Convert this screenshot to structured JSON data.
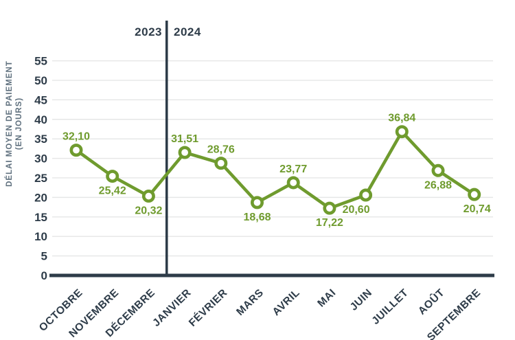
{
  "chart_data": {
    "type": "line",
    "title": "",
    "xlabel": "",
    "ylabel": "DÉLAI MOYEN DE PAIEMENT (EN JOURS)",
    "ylabel_line1": "DÉLAI MOYEN DE PAIEMENT",
    "ylabel_line2": "(EN JOURS)",
    "categories": [
      "OCTOBRE",
      "NOVEMBRE",
      "DÉCEMBRE",
      "JANVIER",
      "FÉVRIER",
      "MARS",
      "AVRIL",
      "MAI",
      "JUIN",
      "JUILLET",
      "AOÛT",
      "SEPTEMBRE"
    ],
    "values": [
      32.1,
      25.42,
      20.32,
      31.51,
      28.76,
      18.68,
      23.77,
      17.22,
      20.6,
      36.84,
      26.88,
      20.74
    ],
    "data_labels": [
      "32,10",
      "25,42",
      "20,32",
      "31,51",
      "28,76",
      "18,68",
      "23,77",
      "17,22",
      "20,60",
      "36,84",
      "26,88",
      "20,74"
    ],
    "label_positions": [
      "above",
      "below",
      "below",
      "above",
      "above",
      "below",
      "above",
      "below",
      "below",
      "above",
      "below",
      "below"
    ],
    "label_dx": [
      0,
      0,
      0,
      0,
      0,
      0,
      0,
      0,
      -14,
      0,
      0,
      4
    ],
    "yticks": [
      0,
      5,
      10,
      15,
      20,
      25,
      30,
      35,
      40,
      45,
      50,
      55
    ],
    "ylim": [
      0,
      57
    ],
    "grid": true,
    "legend": "none",
    "year_left": "2023",
    "year_right": "2024",
    "year_divider_after_index": 2,
    "colors": {
      "line": "#6f9b2e",
      "marker_fill": "#ffffff",
      "axis": "#2e3c49",
      "tick_label": "#2e3c49",
      "grid": "#e5e6e6",
      "ylabel": "#5f707e"
    }
  }
}
